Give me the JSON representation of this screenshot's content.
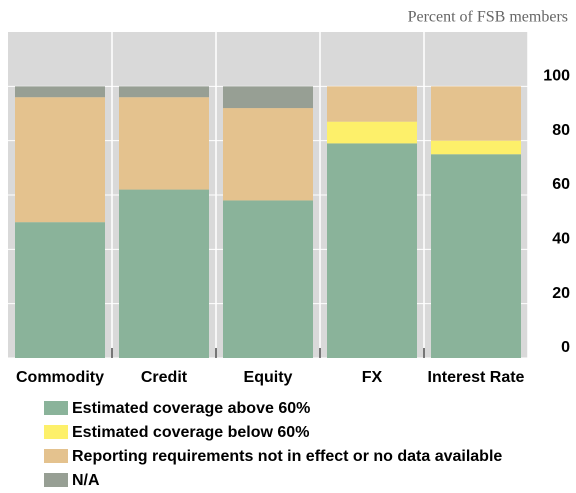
{
  "chart_data": {
    "type": "stacked_bar",
    "subtitle": "Percent of FSB members",
    "categories": [
      "Commodity",
      "Credit",
      "Equity",
      "FX",
      "Interest Rate"
    ],
    "series": [
      {
        "name": "Estimated coverage above 60%",
        "color": "#8ab39a",
        "values": [
          50,
          62,
          58,
          79,
          75
        ]
      },
      {
        "name": "Estimated coverage below 60%",
        "color": "#fdf06a",
        "values": [
          0,
          0,
          0,
          8,
          5
        ]
      },
      {
        "name": "Reporting requirements not in effect or no data available",
        "color": "#e4c28e",
        "values": [
          46,
          34,
          34,
          13,
          20
        ]
      },
      {
        "name": "N/A",
        "color": "#979f94",
        "values": [
          4,
          4,
          8,
          0,
          0
        ]
      }
    ],
    "ylim": [
      0,
      120
    ],
    "yticks": [
      0,
      20,
      40,
      60,
      80,
      100
    ],
    "grid": true
  }
}
